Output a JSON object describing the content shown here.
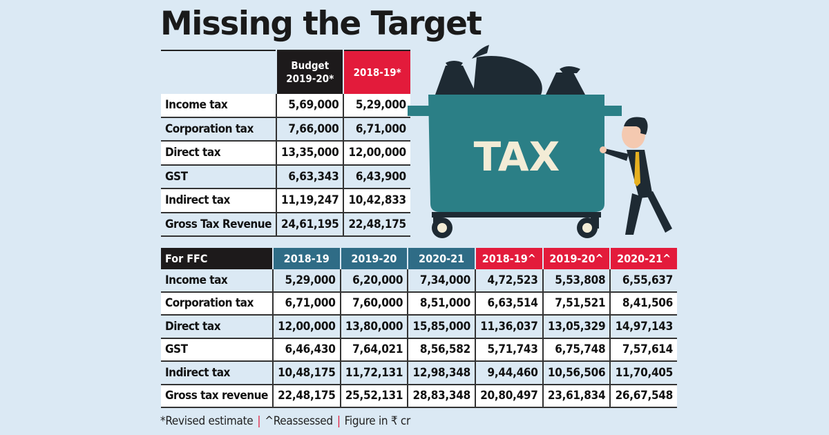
{
  "title": "Missing the Target",
  "table1": {
    "headers": [
      "",
      "Budget 2019-20*",
      "2018-19*"
    ],
    "header_line1": "Budget",
    "header_line2": "2019-20*",
    "rows": [
      {
        "label": "Income tax",
        "values": [
          "5,69,000",
          "5,29,000"
        ]
      },
      {
        "label": "Corporation tax",
        "values": [
          "7,66,000",
          "6,71,000"
        ]
      },
      {
        "label": "Direct tax",
        "values": [
          "13,35,000",
          "12,00,000"
        ]
      },
      {
        "label": "GST",
        "values": [
          "6,63,343",
          "6,43,900"
        ]
      },
      {
        "label": "Indirect tax",
        "values": [
          "11,19,247",
          "10,42,833"
        ]
      },
      {
        "label": "Gross Tax Revenue",
        "values": [
          "24,61,195",
          "22,48,175"
        ]
      }
    ]
  },
  "table2": {
    "headers": [
      "For FFC",
      "2018-19",
      "2019-20",
      "2020-21",
      "2018-19^",
      "2019-20^",
      "2020-21^"
    ],
    "rows": [
      {
        "label": "Income tax",
        "values": [
          "5,29,000",
          "6,20,000",
          "7,34,000",
          "4,72,523",
          "5,53,808",
          "6,55,637"
        ]
      },
      {
        "label": "Corporation tax",
        "values": [
          "6,71,000",
          "7,60,000",
          "8,51,000",
          "6,63,514",
          "7,51,521",
          "8,41,506"
        ]
      },
      {
        "label": "Direct tax",
        "values": [
          "12,00,000",
          "13,80,000",
          "15,85,000",
          "11,36,037",
          "13,05,329",
          "14,97,143"
        ]
      },
      {
        "label": "GST",
        "values": [
          "6,46,430",
          "7,64,021",
          "8,56,582",
          "5,71,743",
          "6,75,748",
          "7,57,614"
        ]
      },
      {
        "label": "Indirect tax",
        "values": [
          "10,48,175",
          "11,72,131",
          "12,98,348",
          "9,44,460",
          "10,56,506",
          "11,70,405"
        ]
      },
      {
        "label": "Gross tax revenue",
        "values": [
          "22,48,175",
          "25,52,131",
          "28,83,348",
          "20,80,497",
          "23,61,834",
          "26,67,548"
        ]
      }
    ]
  },
  "footnote": {
    "parts": [
      "*Revised estimate",
      "^Reassessed",
      "Figure in ₹ cr"
    ],
    "separator": "|"
  },
  "illustration": {
    "label": "TAX",
    "icon": "tax-dumpster-illustration",
    "colors": {
      "bin": "#2b7f86",
      "bags": "#1e2a33",
      "text": "#f3ecd6",
      "tie": "#e6b020"
    }
  },
  "colors": {
    "background": "#dbe9f4",
    "header_black": "#1d1a1b",
    "header_red": "#e31b3b",
    "header_teal": "#2f6c86"
  }
}
